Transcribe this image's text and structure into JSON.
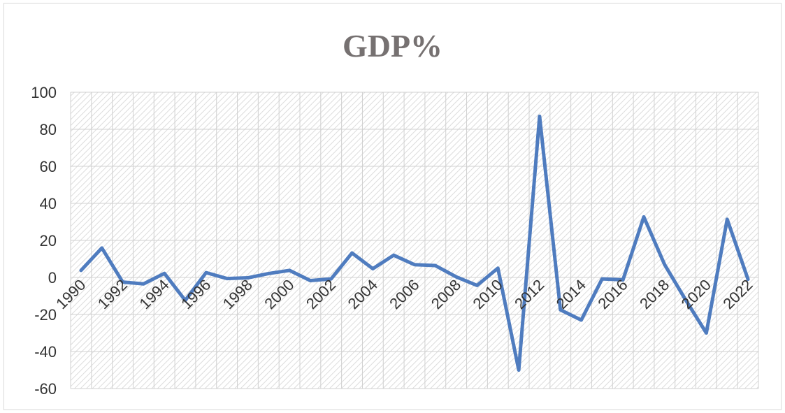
{
  "chart_data": {
    "type": "line",
    "title": "GDP%",
    "xlabel": "",
    "ylabel": "",
    "ylim": [
      -60,
      100
    ],
    "yticks": [
      -60,
      -40,
      -20,
      0,
      20,
      40,
      60,
      80,
      100
    ],
    "grid": true,
    "legend": "none",
    "x": [
      1990,
      1991,
      1992,
      1993,
      1994,
      1995,
      1996,
      1997,
      1998,
      1999,
      2000,
      2001,
      2002,
      2003,
      2004,
      2005,
      2006,
      2007,
      2008,
      2009,
      2010,
      2011,
      2012,
      2013,
      2014,
      2015,
      2016,
      2017,
      2018,
      2019,
      2020,
      2021,
      2022
    ],
    "xtick_labels": [
      "1990",
      "1992",
      "1994",
      "1996",
      "1998",
      "2000",
      "2002",
      "2004",
      "2006",
      "2008",
      "2010",
      "2012",
      "2014",
      "2016",
      "2018",
      "2020",
      "2022"
    ],
    "series": [
      {
        "color": "#4f7cbf",
        "values": [
          3.8,
          15.9,
          -2.5,
          -3.5,
          2.2,
          -12.4,
          2.6,
          -0.6,
          -0.2,
          2.1,
          3.8,
          -1.7,
          -0.8,
          13.2,
          4.7,
          12.0,
          6.9,
          6.4,
          0.3,
          -4.3,
          5.0,
          -50.0,
          87.0,
          -17.5,
          -23.0,
          -0.8,
          -1.3,
          32.7,
          6.9,
          -12.0,
          -30.0,
          31.4,
          -1.0
        ]
      }
    ]
  }
}
